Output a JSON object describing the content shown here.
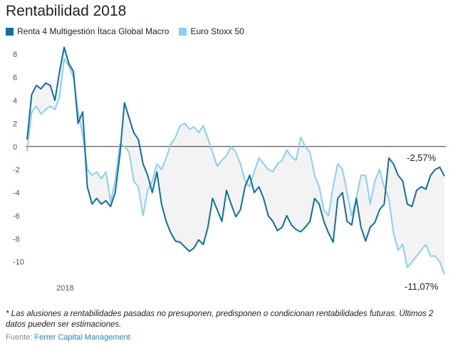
{
  "title": "Rentabilidad 2018",
  "legend": [
    {
      "label": "Renta 4 Multigestión Ítaca Global Macro",
      "color": "#0e6fa1"
    },
    {
      "label": "Euro Stoxx 50",
      "color": "#8ccff2"
    }
  ],
  "footnote": "* Las alusiones a rentabilidades pasadas no presuponen, predisponen o condicionan rentabilidades futuras. Últimos 2 datos pueden ser estimaciones.",
  "source": {
    "prefix": "Fuente: ",
    "name": "Ferrer Capital Management"
  },
  "chart_data": {
    "type": "line",
    "title": "Rentabilidad 2018",
    "xlabel": "",
    "ylabel": "",
    "x_tick_labels": [
      "2018"
    ],
    "y_ticks": [
      -10,
      -8,
      -6,
      -4,
      -2,
      0,
      2,
      4,
      6,
      8
    ],
    "ylim": [
      -11.5,
      9
    ],
    "zero_line": true,
    "between_series_fill": "#f3f3f3",
    "grid": false,
    "legend_position": "top-left",
    "end_labels": [
      "-2,57%",
      "-11,07%"
    ],
    "series": [
      {
        "name": "Renta 4 Multigestión Ítaca Global Macro",
        "color": "#0e6fa1",
        "values": [
          0.6,
          4.5,
          5.3,
          5.0,
          5.5,
          5.3,
          4.0,
          6.5,
          8.6,
          7.2,
          6.5,
          2.0,
          3.0,
          -3.5,
          -5.0,
          -4.5,
          -5.0,
          -4.7,
          -5.2,
          -4.0,
          -0.8,
          3.8,
          2.5,
          1.2,
          0.6,
          -1.5,
          -2.5,
          -4.0,
          -2.2,
          -5.0,
          -6.5,
          -7.5,
          -8.2,
          -8.3,
          -8.7,
          -9.1,
          -8.8,
          -8.1,
          -8.5,
          -7.0,
          -4.5,
          -5.5,
          -6.5,
          -3.8,
          -5.0,
          -6.1,
          -5.5,
          -3.5,
          -2.5,
          -4.0,
          -3.5,
          -4.5,
          -6.0,
          -6.5,
          -7.3,
          -7.0,
          -6.0,
          -6.8,
          -7.2,
          -7.4,
          -7.0,
          -6.5,
          -4.5,
          -5.0,
          -6.5,
          -7.5,
          -8.3,
          -4.5,
          -4.0,
          -6.5,
          -6.8,
          -4.5,
          -7.0,
          -8.2,
          -7.0,
          -6.6,
          -5.5,
          -5.0,
          -1.0,
          -1.5,
          -2.5,
          -3.0,
          -5.0,
          -5.2,
          -3.8,
          -3.5,
          -3.7,
          -2.5,
          -2.0,
          -1.8,
          -2.57
        ]
      },
      {
        "name": "Euro Stoxx 50",
        "color": "#8ccff2",
        "values": [
          -0.4,
          3.0,
          3.5,
          2.8,
          3.2,
          3.5,
          3.2,
          4.3,
          7.6,
          7.0,
          6.0,
          3.0,
          1.0,
          -2.0,
          -2.5,
          -2.2,
          -2.8,
          -2.2,
          -4.8,
          -3.0,
          0.2,
          0.0,
          -0.5,
          -3.0,
          -3.5,
          -6.0,
          -3.8,
          -3.0,
          -1.5,
          -2.0,
          -1.0,
          0.2,
          0.8,
          1.8,
          2.0,
          1.5,
          1.7,
          1.2,
          1.8,
          0.7,
          -0.5,
          -1.7,
          -1.2,
          -0.8,
          0.0,
          -0.5,
          -1.5,
          -3.0,
          -3.5,
          -2.2,
          -1.0,
          -1.5,
          -2.0,
          -2.2,
          -1.5,
          -1.2,
          -0.3,
          -0.9,
          -1.2,
          0.8,
          0.0,
          -0.5,
          -2.5,
          -3.5,
          -5.5,
          -6.0,
          -3.5,
          -1.5,
          -2.0,
          -4.0,
          -6.0,
          -4.5,
          -2.5,
          -2.5,
          -5.0,
          -3.0,
          -2.0,
          -3.5,
          -4.5,
          -7.5,
          -9.0,
          -8.5,
          -10.5,
          -10.0,
          -9.5,
          -9.0,
          -8.5,
          -9.5,
          -9.5,
          -10.0,
          -11.07
        ]
      }
    ]
  }
}
